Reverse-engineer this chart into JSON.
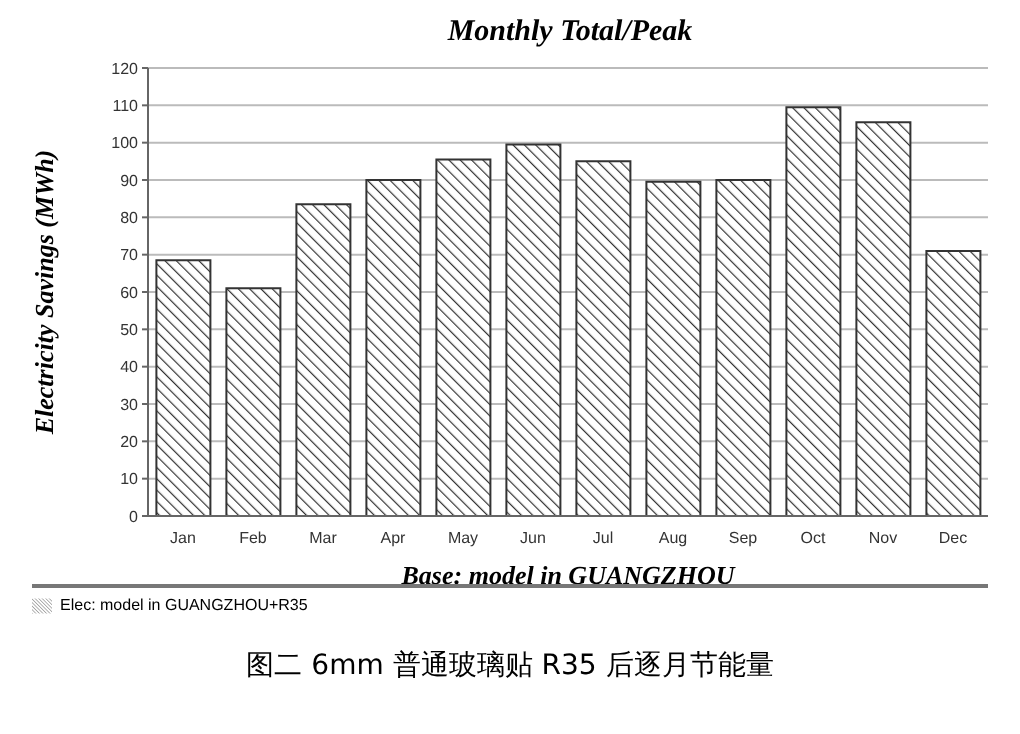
{
  "chart_data": {
    "type": "bar",
    "title": "Monthly Total/Peak",
    "xlabel": "Base: model in GUANGZHOU",
    "ylabel": "Electricity Savings (MWh)",
    "categories": [
      "Jan",
      "Feb",
      "Mar",
      "Apr",
      "May",
      "Jun",
      "Jul",
      "Aug",
      "Sep",
      "Oct",
      "Nov",
      "Dec"
    ],
    "series": [
      {
        "name": "Elec:  model in GUANGZHOU+R35",
        "color": "#333333",
        "values": [
          68.5,
          61,
          83.5,
          90,
          95.5,
          99.5,
          95,
          89.5,
          90,
          109.5,
          105.5,
          71
        ]
      }
    ],
    "ylim": [
      0,
      120
    ],
    "yticks": [
      0,
      10,
      20,
      30,
      40,
      50,
      60,
      70,
      80,
      90,
      100,
      110,
      120
    ],
    "grid": "y",
    "legend": "bottom left",
    "annotations": [
      "图二 6mm 普通玻璃贴 R35 后逐月节能量"
    ]
  }
}
